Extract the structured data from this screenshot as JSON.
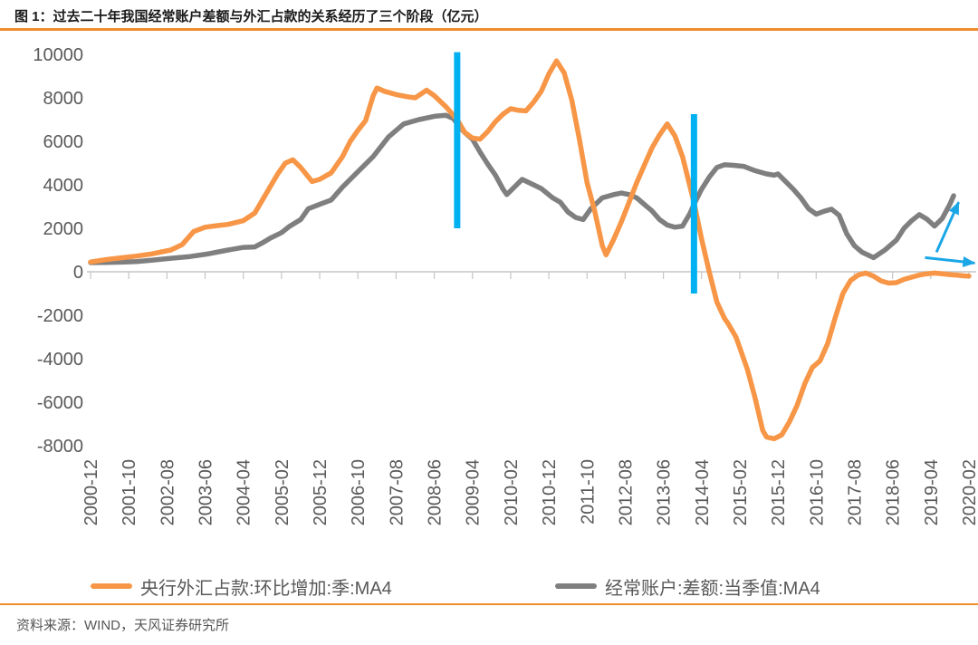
{
  "figure": {
    "title": "图 1：过去二十年我国经常账户差额与外汇占款的关系经历了三个阶段（亿元）",
    "source": "资料来源：WIND，天风证券研究所"
  },
  "colors": {
    "series_orange": "#F79646",
    "series_gray": "#7F7F7F",
    "stage_blue": "#00B0F0",
    "arrow_blue": "#1BA7E6",
    "axis_line_gray": "#C6C6C6",
    "label_gray": "#595959",
    "rule_orange": "#F08C2E"
  },
  "chart_data": {
    "type": "line",
    "title": "过去二十年我国经常账户差额与外汇占款的关系经历了三个阶段",
    "unit": "亿元",
    "x_unit": "month index from 2000-12 (0) to 2020-02 (230)",
    "ylim": [
      -8000,
      10000
    ],
    "grid": false,
    "legend_position": "bottom",
    "y_ticks": [
      10000,
      8000,
      6000,
      4000,
      2000,
      0,
      -2000,
      -4000,
      -6000,
      -8000
    ],
    "x_tick_months": [
      0,
      10,
      20,
      30,
      40,
      50,
      60,
      70,
      80,
      90,
      100,
      110,
      120,
      130,
      140,
      150,
      160,
      170,
      180,
      190,
      200,
      210,
      220,
      230
    ],
    "x_tick_labels": [
      "2000-12",
      "2001-10",
      "2002-08",
      "2003-06",
      "2004-04",
      "2005-02",
      "2005-12",
      "2006-10",
      "2007-08",
      "2008-06",
      "2009-04",
      "2010-02",
      "2010-12",
      "2011-10",
      "2012-08",
      "2013-06",
      "2014-04",
      "2015-02",
      "2015-12",
      "2016-10",
      "2017-08",
      "2018-06",
      "2019-04",
      "2020-02"
    ],
    "series": [
      {
        "name": "央行外汇占款:环比增加:季:MA4",
        "color": "#F79646",
        "points": [
          [
            0,
            450
          ],
          [
            4,
            560
          ],
          [
            8,
            640
          ],
          [
            12,
            720
          ],
          [
            16,
            820
          ],
          [
            21,
            1000
          ],
          [
            24,
            1250
          ],
          [
            27,
            1850
          ],
          [
            30,
            2050
          ],
          [
            33,
            2120
          ],
          [
            36,
            2180
          ],
          [
            40,
            2350
          ],
          [
            43,
            2700
          ],
          [
            45,
            3300
          ],
          [
            47,
            3900
          ],
          [
            49,
            4500
          ],
          [
            51,
            5000
          ],
          [
            53,
            5150
          ],
          [
            55,
            4800
          ],
          [
            58,
            4150
          ],
          [
            60,
            4250
          ],
          [
            63,
            4550
          ],
          [
            66,
            5300
          ],
          [
            68,
            6000
          ],
          [
            70,
            6500
          ],
          [
            72,
            6950
          ],
          [
            74,
            8100
          ],
          [
            75,
            8450
          ],
          [
            77,
            8300
          ],
          [
            80,
            8150
          ],
          [
            83,
            8050
          ],
          [
            85,
            8000
          ],
          [
            88,
            8350
          ],
          [
            90,
            8100
          ],
          [
            93,
            7600
          ],
          [
            96,
            7000
          ],
          [
            98,
            6400
          ],
          [
            100,
            6150
          ],
          [
            102,
            6100
          ],
          [
            104,
            6450
          ],
          [
            106,
            6900
          ],
          [
            108,
            7250
          ],
          [
            110,
            7500
          ],
          [
            112,
            7430
          ],
          [
            114,
            7400
          ],
          [
            116,
            7800
          ],
          [
            118,
            8300
          ],
          [
            120,
            9100
          ],
          [
            122,
            9700
          ],
          [
            124,
            9150
          ],
          [
            126,
            7900
          ],
          [
            128,
            6100
          ],
          [
            130,
            4100
          ],
          [
            132,
            2800
          ],
          [
            134,
            1200
          ],
          [
            135,
            780
          ],
          [
            137,
            1500
          ],
          [
            139,
            2300
          ],
          [
            141,
            3200
          ],
          [
            143,
            4100
          ],
          [
            145,
            4900
          ],
          [
            147,
            5700
          ],
          [
            149,
            6300
          ],
          [
            151,
            6800
          ],
          [
            153,
            6250
          ],
          [
            155,
            5300
          ],
          [
            157,
            3900
          ],
          [
            158,
            3200
          ],
          [
            160,
            1500
          ],
          [
            162,
            0
          ],
          [
            164,
            -1400
          ],
          [
            166,
            -2150
          ],
          [
            167,
            -2400
          ],
          [
            169,
            -3000
          ],
          [
            170,
            -3500
          ],
          [
            172,
            -4500
          ],
          [
            174,
            -5800
          ],
          [
            176,
            -7300
          ],
          [
            177,
            -7600
          ],
          [
            179,
            -7680
          ],
          [
            181,
            -7500
          ],
          [
            183,
            -6900
          ],
          [
            185,
            -6150
          ],
          [
            187,
            -5150
          ],
          [
            189,
            -4400
          ],
          [
            191,
            -4100
          ],
          [
            193,
            -3300
          ],
          [
            195,
            -2100
          ],
          [
            197,
            -1000
          ],
          [
            199,
            -400
          ],
          [
            201,
            -150
          ],
          [
            203,
            -60
          ],
          [
            205,
            -200
          ],
          [
            207,
            -420
          ],
          [
            209,
            -520
          ],
          [
            211,
            -500
          ],
          [
            213,
            -350
          ],
          [
            215,
            -250
          ],
          [
            217,
            -150
          ],
          [
            219,
            -90
          ],
          [
            221,
            -60
          ],
          [
            223,
            -90
          ],
          [
            225,
            -130
          ],
          [
            227,
            -160
          ],
          [
            229,
            -190
          ],
          [
            230,
            -200
          ]
        ]
      },
      {
        "name": "经常账户:差额:当季值:MA4",
        "color": "#7F7F7F",
        "points": [
          [
            0,
            420
          ],
          [
            4,
            430
          ],
          [
            8,
            440
          ],
          [
            12,
            470
          ],
          [
            16,
            530
          ],
          [
            21,
            620
          ],
          [
            26,
            700
          ],
          [
            31,
            830
          ],
          [
            36,
            1000
          ],
          [
            40,
            1120
          ],
          [
            43,
            1140
          ],
          [
            45,
            1330
          ],
          [
            47,
            1540
          ],
          [
            50,
            1800
          ],
          [
            52,
            2080
          ],
          [
            55,
            2400
          ],
          [
            57,
            2900
          ],
          [
            60,
            3100
          ],
          [
            63,
            3300
          ],
          [
            66,
            3900
          ],
          [
            70,
            4600
          ],
          [
            74,
            5300
          ],
          [
            78,
            6200
          ],
          [
            82,
            6800
          ],
          [
            86,
            7000
          ],
          [
            90,
            7150
          ],
          [
            93,
            7200
          ],
          [
            95,
            7050
          ],
          [
            96,
            6800
          ],
          [
            98,
            6400
          ],
          [
            100,
            6100
          ],
          [
            102,
            5500
          ],
          [
            104,
            4950
          ],
          [
            106,
            4450
          ],
          [
            108,
            3800
          ],
          [
            109,
            3550
          ],
          [
            111,
            3900
          ],
          [
            113,
            4250
          ],
          [
            116,
            4000
          ],
          [
            118,
            3830
          ],
          [
            121,
            3400
          ],
          [
            123,
            3200
          ],
          [
            125,
            2750
          ],
          [
            127,
            2500
          ],
          [
            129,
            2400
          ],
          [
            131,
            2900
          ],
          [
            134,
            3400
          ],
          [
            137,
            3550
          ],
          [
            139,
            3620
          ],
          [
            141,
            3550
          ],
          [
            143,
            3400
          ],
          [
            145,
            3100
          ],
          [
            147,
            2800
          ],
          [
            149,
            2400
          ],
          [
            151,
            2150
          ],
          [
            153,
            2050
          ],
          [
            155,
            2100
          ],
          [
            157,
            2700
          ],
          [
            158,
            3100
          ],
          [
            160,
            3800
          ],
          [
            162,
            4350
          ],
          [
            164,
            4800
          ],
          [
            166,
            4920
          ],
          [
            168,
            4900
          ],
          [
            171,
            4850
          ],
          [
            174,
            4650
          ],
          [
            177,
            4500
          ],
          [
            179,
            4440
          ],
          [
            180,
            4500
          ],
          [
            182,
            4150
          ],
          [
            184,
            3800
          ],
          [
            186,
            3400
          ],
          [
            188,
            2900
          ],
          [
            190,
            2650
          ],
          [
            192,
            2780
          ],
          [
            194,
            2880
          ],
          [
            196,
            2600
          ],
          [
            198,
            1750
          ],
          [
            200,
            1200
          ],
          [
            202,
            900
          ],
          [
            205,
            650
          ],
          [
            208,
            1000
          ],
          [
            211,
            1460
          ],
          [
            213,
            2000
          ],
          [
            215,
            2350
          ],
          [
            217,
            2630
          ],
          [
            219,
            2420
          ],
          [
            221,
            2100
          ],
          [
            223,
            2450
          ],
          [
            225,
            3100
          ],
          [
            226,
            3500
          ]
        ]
      }
    ],
    "stage_dividers": [
      {
        "month": 96,
        "value_from": 2000,
        "value_to": 10100
      },
      {
        "month": 158,
        "value_from": -1000,
        "value_to": 7250
      }
    ],
    "arrows": [
      {
        "from_month": 221.5,
        "from_value": 900,
        "to_month": 227.3,
        "to_value": 3200
      },
      {
        "from_month": 218.5,
        "from_value": 650,
        "to_month": 231.5,
        "to_value": 400
      }
    ]
  }
}
